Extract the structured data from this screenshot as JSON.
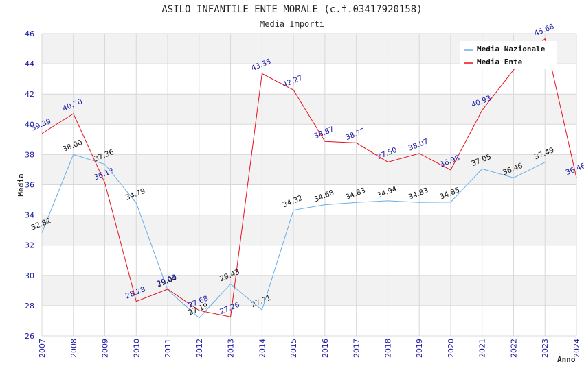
{
  "chart_data": {
    "type": "line",
    "title": "ASILO INFANTILE ENTE MORALE (c.f.03417920158)",
    "subtitle": "Media Importi",
    "xlabel": "Anno",
    "ylabel": "Media",
    "ylim": [
      26,
      46
    ],
    "yticks": [
      26,
      28,
      30,
      32,
      34,
      36,
      38,
      40,
      42,
      44,
      46
    ],
    "x": [
      2007,
      2008,
      2009,
      2010,
      2011,
      2012,
      2013,
      2014,
      2015,
      2016,
      2017,
      2018,
      2019,
      2020,
      2021,
      2022,
      2023,
      2024
    ],
    "xtick_labels": [
      "2007",
      "2008",
      "2009",
      "2010",
      "2011",
      "2012",
      "2013",
      "2014",
      "2015",
      "2016",
      "2017",
      "2018",
      "2019",
      "2020",
      "2021",
      "2022",
      "2023",
      "2024"
    ],
    "grid": true,
    "legend_position": "top-right",
    "series": [
      {
        "name": "Media Nazionale",
        "color": "#6aaee6",
        "label_color": "#111111",
        "values": [
          32.82,
          38.0,
          37.36,
          34.79,
          29.04,
          27.19,
          29.43,
          27.71,
          34.32,
          34.68,
          34.83,
          34.94,
          34.83,
          34.85,
          37.05,
          36.46,
          37.49,
          null
        ],
        "labels": [
          "32.82",
          "38.00",
          "37.36",
          "34.79",
          "29.04",
          "27.19",
          "29.43",
          "27.71",
          "34.32",
          "34.68",
          "34.83",
          "34.94",
          "34.83",
          "34.85",
          "37.05",
          "36.46",
          "37.49",
          ""
        ]
      },
      {
        "name": "Media Ente",
        "color": "#e8101c",
        "label_color": "#1a1aa6",
        "values": [
          39.39,
          40.7,
          36.13,
          28.28,
          29.09,
          27.68,
          27.26,
          43.35,
          42.27,
          38.87,
          38.77,
          37.5,
          38.07,
          36.98,
          40.93,
          43.6,
          45.66,
          36.46
        ],
        "labels": [
          "39.39",
          "40.70",
          "36.13",
          "28.28",
          "29.09",
          "27.68",
          "27.26",
          "43.35",
          "42.27",
          "38.87",
          "38.77",
          "37.50",
          "38.07",
          "36.98",
          "40.93",
          "",
          "45.66",
          "36.46"
        ]
      }
    ]
  }
}
